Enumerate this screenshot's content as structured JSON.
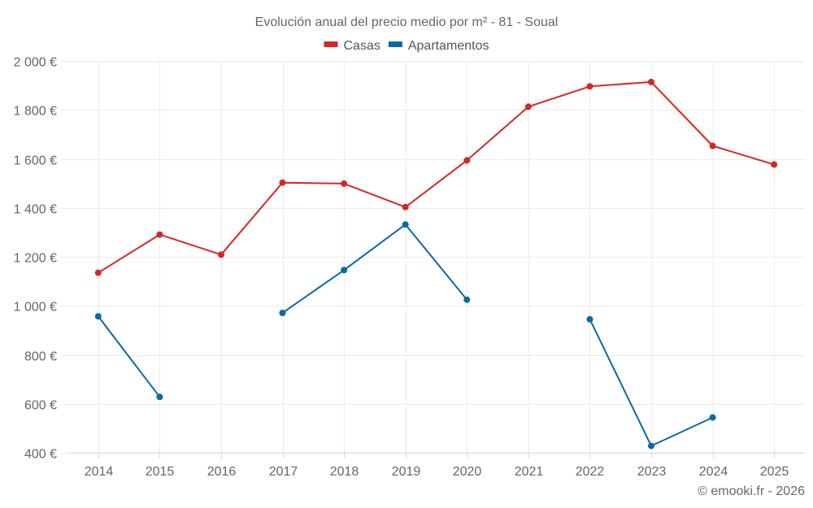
{
  "chart_data": {
    "type": "line",
    "title": "Evolución anual del precio medio por m² - 81 - Soual",
    "xlabel": "",
    "ylabel": "",
    "categories": [
      "2014",
      "2015",
      "2016",
      "2017",
      "2018",
      "2019",
      "2020",
      "2021",
      "2022",
      "2023",
      "2024",
      "2025"
    ],
    "ylim": [
      400,
      2000
    ],
    "yticks": [
      400,
      600,
      800,
      1000,
      1200,
      1400,
      1600,
      1800,
      2000
    ],
    "ytick_labels": [
      "400 €",
      "600 €",
      "800 €",
      "1 000 €",
      "1 200 €",
      "1 400 €",
      "1 600 €",
      "1 800 €",
      "2 000 €"
    ],
    "grid": true,
    "legend_position": "top-center",
    "series": [
      {
        "name": "Casas",
        "color": "#d62728",
        "values": [
          1135,
          1291,
          1209,
          1503,
          1499,
          1403,
          1594,
          1813,
          1896,
          1914,
          1653,
          1577
        ]
      },
      {
        "name": "Apartamentos",
        "color": "#0b6a9e",
        "values": [
          957,
          628,
          null,
          971,
          1146,
          1332,
          1025,
          null,
          945,
          428,
          544,
          null
        ]
      }
    ],
    "credit": "© emooki.fr - 2026"
  }
}
